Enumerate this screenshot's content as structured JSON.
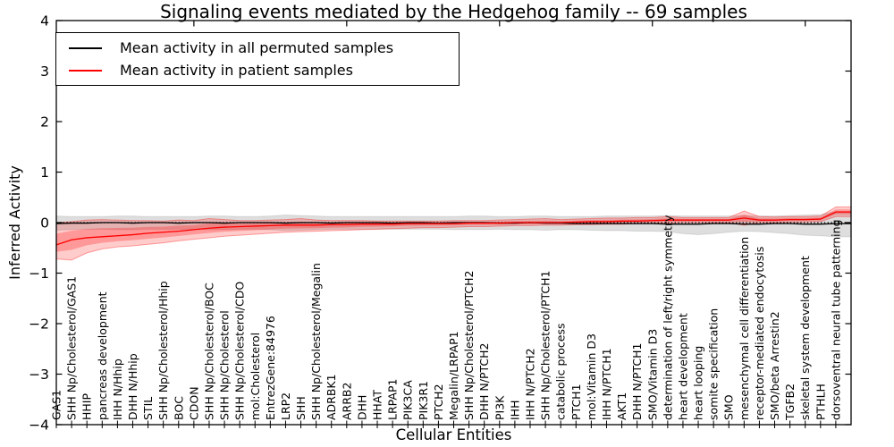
{
  "chart_data": {
    "type": "line",
    "title": "Signaling events mediated by the Hedgehog family -- 69 samples",
    "xlabel": "Cellular Entities",
    "ylabel": "Inferred Activity",
    "ylim": [
      -4,
      4
    ],
    "yticks": [
      4,
      3,
      2,
      1,
      0,
      -1,
      -2,
      -3,
      -4
    ],
    "ytick_labels": [
      "4",
      "3",
      "2",
      "1",
      "0",
      "−1",
      "−2",
      "−3",
      "−4"
    ],
    "xticks": [
      10,
      20,
      30,
      40,
      50
    ],
    "grid": false,
    "legend_position": "upper left",
    "zero_line": {
      "y": 0,
      "style": "dotted",
      "color": "#000000"
    },
    "categories": [
      "GAS1",
      "SHH Np/Cholesterol/GAS1",
      "HHIP",
      "pancreas development",
      "IHH N/Hhip",
      "DHH N/Hhip",
      "STIL",
      "SHH Np/Cholesterol/Hhip",
      "BOC",
      "CDON",
      "SHH Np/Cholesterol/BOC",
      "SHH Np/Cholesterol",
      "SHH Np/Cholesterol/CDO",
      "mol:Cholesterol",
      "EntrezGene:84976",
      "LRP2",
      "SHH",
      "SHH Np/Cholesterol/Megalin",
      "ADRBK1",
      "ARRB2",
      "DHH",
      "HHAT",
      "LRPAP1",
      "PIK3CA",
      "PIK3R1",
      "PTCH2",
      "Megalin/LRPAP1",
      "SHH Np/Cholesterol/PTCH2",
      "DHH N/PTCH2",
      "PI3K",
      "IHH",
      "IHH N/PTCH2",
      "SHH Np/Cholesterol/PTCH1",
      "catabolic process",
      "PTCH1",
      "mol:Vitamin D3",
      "IHH N/PTCH1",
      "AKT1",
      "DHH N/PTCH1",
      "SMO/Vitamin D3",
      "determination of left/right symmetry",
      "heart development",
      "heart looping",
      "somite specification",
      "SMO",
      "mesenchymal cell differentiation",
      "receptor-mediated endocytosis",
      "SMO/beta Arrestin2",
      "TGFB2",
      "skeletal system development",
      "PTHLH",
      "dorsoventral neural tube patterning"
    ],
    "series": [
      {
        "name": "Mean activity in all permuted samples",
        "color": "#000000",
        "band_color": "rgba(0,0,0,0.13)",
        "values": [
          -0.02,
          -0.01,
          -0.01,
          0.0,
          0.0,
          -0.01,
          0.0,
          0.0,
          -0.01,
          0.0,
          0.0,
          -0.01,
          0.0,
          0.0,
          0.0,
          -0.01,
          0.0,
          0.0,
          -0.01,
          0.0,
          0.0,
          0.0,
          -0.01,
          0.0,
          0.0,
          -0.01,
          0.0,
          0.0,
          0.0,
          -0.01,
          -0.01,
          0.0,
          -0.01,
          -0.01,
          -0.02,
          -0.02,
          -0.02,
          -0.02,
          -0.02,
          -0.02,
          -0.03,
          -0.03,
          -0.03,
          -0.02,
          -0.02,
          -0.03,
          -0.03,
          -0.02,
          -0.02,
          -0.03,
          -0.03,
          -0.02
        ],
        "band_upper": [
          0.13,
          0.12,
          0.12,
          0.12,
          0.13,
          0.13,
          0.12,
          0.12,
          0.12,
          0.12,
          0.13,
          0.13,
          0.12,
          0.12,
          0.13,
          0.15,
          0.14,
          0.13,
          0.12,
          0.12,
          0.12,
          0.12,
          0.12,
          0.12,
          0.12,
          0.12,
          0.12,
          0.13,
          0.13,
          0.12,
          0.12,
          0.13,
          0.13,
          0.12,
          0.12,
          0.12,
          0.13,
          0.13,
          0.13,
          0.13,
          0.14,
          0.13,
          0.13,
          0.13,
          0.13,
          0.14,
          0.13,
          0.13,
          0.14,
          0.15,
          0.16,
          0.22
        ],
        "band_lower": [
          -0.15,
          -0.14,
          -0.13,
          -0.13,
          -0.14,
          -0.14,
          -0.13,
          -0.13,
          -0.13,
          -0.13,
          -0.14,
          -0.14,
          -0.13,
          -0.13,
          -0.14,
          -0.16,
          -0.15,
          -0.14,
          -0.13,
          -0.13,
          -0.13,
          -0.13,
          -0.13,
          -0.13,
          -0.13,
          -0.13,
          -0.14,
          -0.14,
          -0.14,
          -0.13,
          -0.14,
          -0.14,
          -0.15,
          -0.14,
          -0.14,
          -0.15,
          -0.16,
          -0.16,
          -0.17,
          -0.17,
          -0.18,
          -0.22,
          -0.24,
          -0.22,
          -0.19,
          -0.17,
          -0.18,
          -0.2,
          -0.22,
          -0.25,
          -0.26,
          -0.28
        ]
      },
      {
        "name": "Mean activity in patient samples",
        "color": "#ff0000",
        "band_color": "rgba(255,0,0,0.20)",
        "values": [
          -0.44,
          -0.34,
          -0.3,
          -0.28,
          -0.26,
          -0.24,
          -0.21,
          -0.19,
          -0.17,
          -0.14,
          -0.11,
          -0.09,
          -0.08,
          -0.07,
          -0.06,
          -0.05,
          -0.05,
          -0.05,
          -0.04,
          -0.04,
          -0.03,
          -0.03,
          -0.03,
          -0.02,
          -0.02,
          -0.02,
          -0.02,
          -0.01,
          -0.01,
          -0.01,
          0.0,
          0.0,
          0.0,
          0.0,
          0.01,
          0.02,
          0.02,
          0.03,
          0.03,
          0.04,
          0.05,
          0.05,
          0.05,
          0.05,
          0.05,
          0.09,
          0.05,
          0.05,
          0.06,
          0.06,
          0.07,
          0.21
        ],
        "band_upper": [
          0.0,
          0.02,
          0.05,
          0.06,
          0.05,
          0.04,
          0.04,
          0.03,
          0.05,
          0.04,
          0.08,
          0.06,
          0.04,
          0.04,
          0.05,
          0.06,
          0.08,
          0.05,
          0.04,
          0.04,
          0.04,
          0.03,
          0.03,
          0.03,
          0.03,
          0.03,
          0.04,
          0.04,
          0.04,
          0.05,
          0.06,
          0.07,
          0.08,
          0.06,
          0.07,
          0.08,
          0.09,
          0.09,
          0.1,
          0.1,
          0.12,
          0.1,
          0.1,
          0.1,
          0.1,
          0.23,
          0.12,
          0.11,
          0.12,
          0.12,
          0.13,
          0.31
        ],
        "band_lower": [
          -0.72,
          -0.74,
          -0.6,
          -0.52,
          -0.48,
          -0.46,
          -0.43,
          -0.4,
          -0.36,
          -0.33,
          -0.3,
          -0.27,
          -0.25,
          -0.23,
          -0.21,
          -0.19,
          -0.18,
          -0.17,
          -0.16,
          -0.15,
          -0.14,
          -0.13,
          -0.12,
          -0.11,
          -0.1,
          -0.1,
          -0.09,
          -0.08,
          -0.08,
          -0.07,
          -0.06,
          -0.06,
          -0.05,
          -0.05,
          -0.04,
          -0.04,
          -0.03,
          -0.03,
          -0.02,
          -0.02,
          -0.01,
          0.0,
          0.0,
          0.0,
          0.0,
          -0.05,
          0.0,
          0.0,
          0.01,
          0.01,
          0.02,
          0.12
        ]
      }
    ]
  }
}
